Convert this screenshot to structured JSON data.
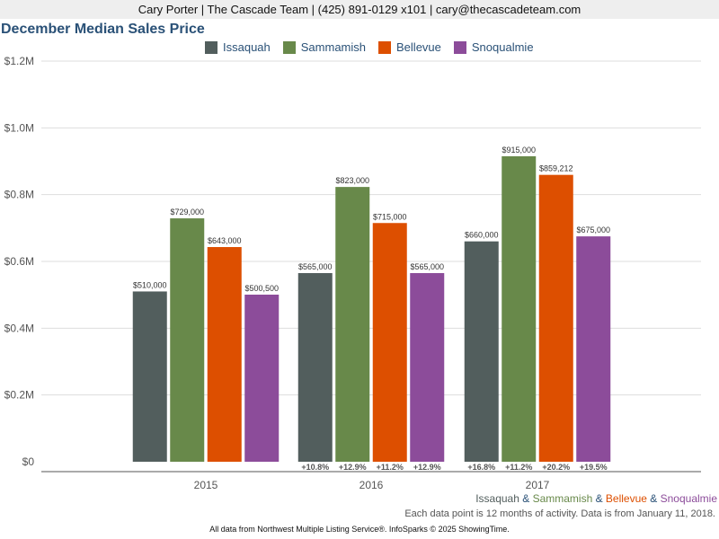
{
  "header": {
    "text": "Cary Porter | The Cascade Team | (425) 891-0129 x101 | cary@thecascadeteam.com"
  },
  "chart_data": {
    "type": "bar",
    "title": "December Median Sales Price",
    "categories": [
      "2015",
      "2016",
      "2017"
    ],
    "series": [
      {
        "name": "Issaquah",
        "color": "#525e5d",
        "values": [
          510000,
          565000,
          660000
        ],
        "labels": [
          "$510,000",
          "$565,000",
          "$660,000"
        ],
        "changes": [
          "",
          "+10.8%",
          "+16.8%"
        ]
      },
      {
        "name": "Sammamish",
        "color": "#68894a",
        "values": [
          729000,
          823000,
          915000
        ],
        "labels": [
          "$729,000",
          "$823,000",
          "$915,000"
        ],
        "changes": [
          "",
          "+12.9%",
          "+11.2%"
        ]
      },
      {
        "name": "Bellevue",
        "color": "#dd4f00",
        "values": [
          643000,
          715000,
          859212
        ],
        "labels": [
          "$643,000",
          "$715,000",
          "$859,212"
        ],
        "changes": [
          "",
          "+11.2%",
          "+20.2%"
        ]
      },
      {
        "name": "Snoqualmie",
        "color": "#8c4c9a",
        "values": [
          500500,
          565000,
          675000
        ],
        "labels": [
          "$500,500",
          "$565,000",
          "$675,000"
        ],
        "changes": [
          "",
          "+12.9%",
          "+19.5%"
        ]
      }
    ],
    "yticks": [
      "$0",
      "$0.2M",
      "$0.4M",
      "$0.6M",
      "$0.8M",
      "$1.0M",
      "$1.2M"
    ],
    "ylim": [
      0,
      1200000
    ],
    "grid": true,
    "legend": "top"
  },
  "subline": {
    "parts": [
      "Issaquah",
      " & ",
      "Sammamish",
      " & ",
      "Bellevue",
      " & ",
      "Snoqualmie"
    ]
  },
  "note": "Each data point is 12 months of activity. Data is from January 11, 2018.",
  "footer": "All data from Northwest Multiple Listing Service®. InfoSparks © 2025 ShowingTime.",
  "colors": {
    "title": "#2a5177",
    "grid": "#dddddd",
    "axis": "#555555"
  }
}
